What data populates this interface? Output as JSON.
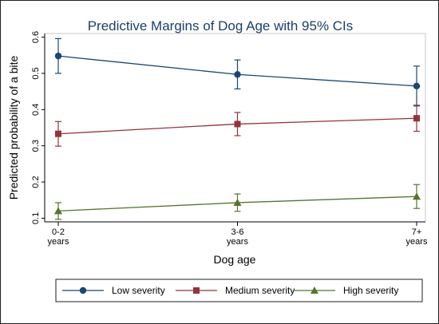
{
  "chart_data": {
    "type": "line",
    "title": "Predictive Margins of Dog Age with 95% CIs",
    "xlabel": "Dog age",
    "ylabel": "Predicted probability of a bite",
    "categories": [
      [
        "0-2",
        "years"
      ],
      [
        "3-6",
        "years"
      ],
      [
        "7+",
        "years"
      ]
    ],
    "yticks": [
      "0.1",
      "0.2",
      "0.3",
      "0.4",
      "0.5",
      "0.6"
    ],
    "ylim": [
      0.09,
      0.61
    ],
    "grid": false,
    "legend_position": "bottom",
    "series": [
      {
        "name": "Low severity",
        "color": "#1a476f",
        "marker": "circle",
        "values": [
          0.548,
          0.497,
          0.465
        ],
        "ci_low": [
          0.5,
          0.457,
          0.41
        ],
        "ci_high": [
          0.596,
          0.537,
          0.52
        ]
      },
      {
        "name": "Medium severity",
        "color": "#90353b",
        "marker": "square",
        "values": [
          0.333,
          0.36,
          0.376
        ],
        "ci_low": [
          0.299,
          0.328,
          0.34
        ],
        "ci_high": [
          0.367,
          0.392,
          0.412
        ]
      },
      {
        "name": "High severity",
        "color": "#55752f",
        "marker": "triangle",
        "values": [
          0.12,
          0.143,
          0.16
        ],
        "ci_low": [
          0.097,
          0.119,
          0.127
        ],
        "ci_high": [
          0.143,
          0.167,
          0.193
        ]
      }
    ]
  }
}
